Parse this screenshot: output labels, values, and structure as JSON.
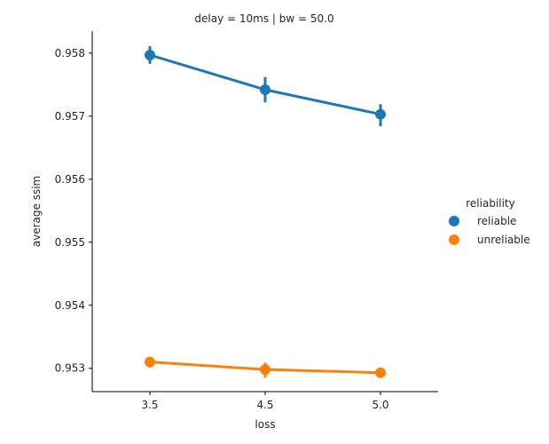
{
  "chart_data": {
    "type": "line",
    "title": "delay = 10ms | bw = 50.0",
    "xlabel": "loss",
    "ylabel": "average ssim",
    "categories": [
      "3.5",
      "4.5",
      "5.0"
    ],
    "ylim": [
      0.95263,
      0.95835
    ],
    "yticks": [
      0.953,
      0.954,
      0.955,
      0.956,
      0.957,
      0.958
    ],
    "ytick_labels": [
      "0.953",
      "0.954",
      "0.955",
      "0.956",
      "0.957",
      "0.958"
    ],
    "grid": false,
    "legend": {
      "title": "reliability",
      "placement": "right"
    },
    "series": [
      {
        "name": "reliable",
        "color": "#1f77b4",
        "values": [
          0.95797,
          0.95742,
          0.95703
        ],
        "err_low": [
          0.95783,
          0.95722,
          0.95684
        ],
        "err_high": [
          0.95811,
          0.95762,
          0.95719
        ]
      },
      {
        "name": "unreliable",
        "color": "#ff7f0e",
        "values": [
          0.9531,
          0.95298,
          0.95293
        ],
        "err_low": [
          0.95301,
          0.95285,
          0.95289
        ],
        "err_high": [
          0.95318,
          0.95309,
          0.95297
        ]
      }
    ]
  }
}
